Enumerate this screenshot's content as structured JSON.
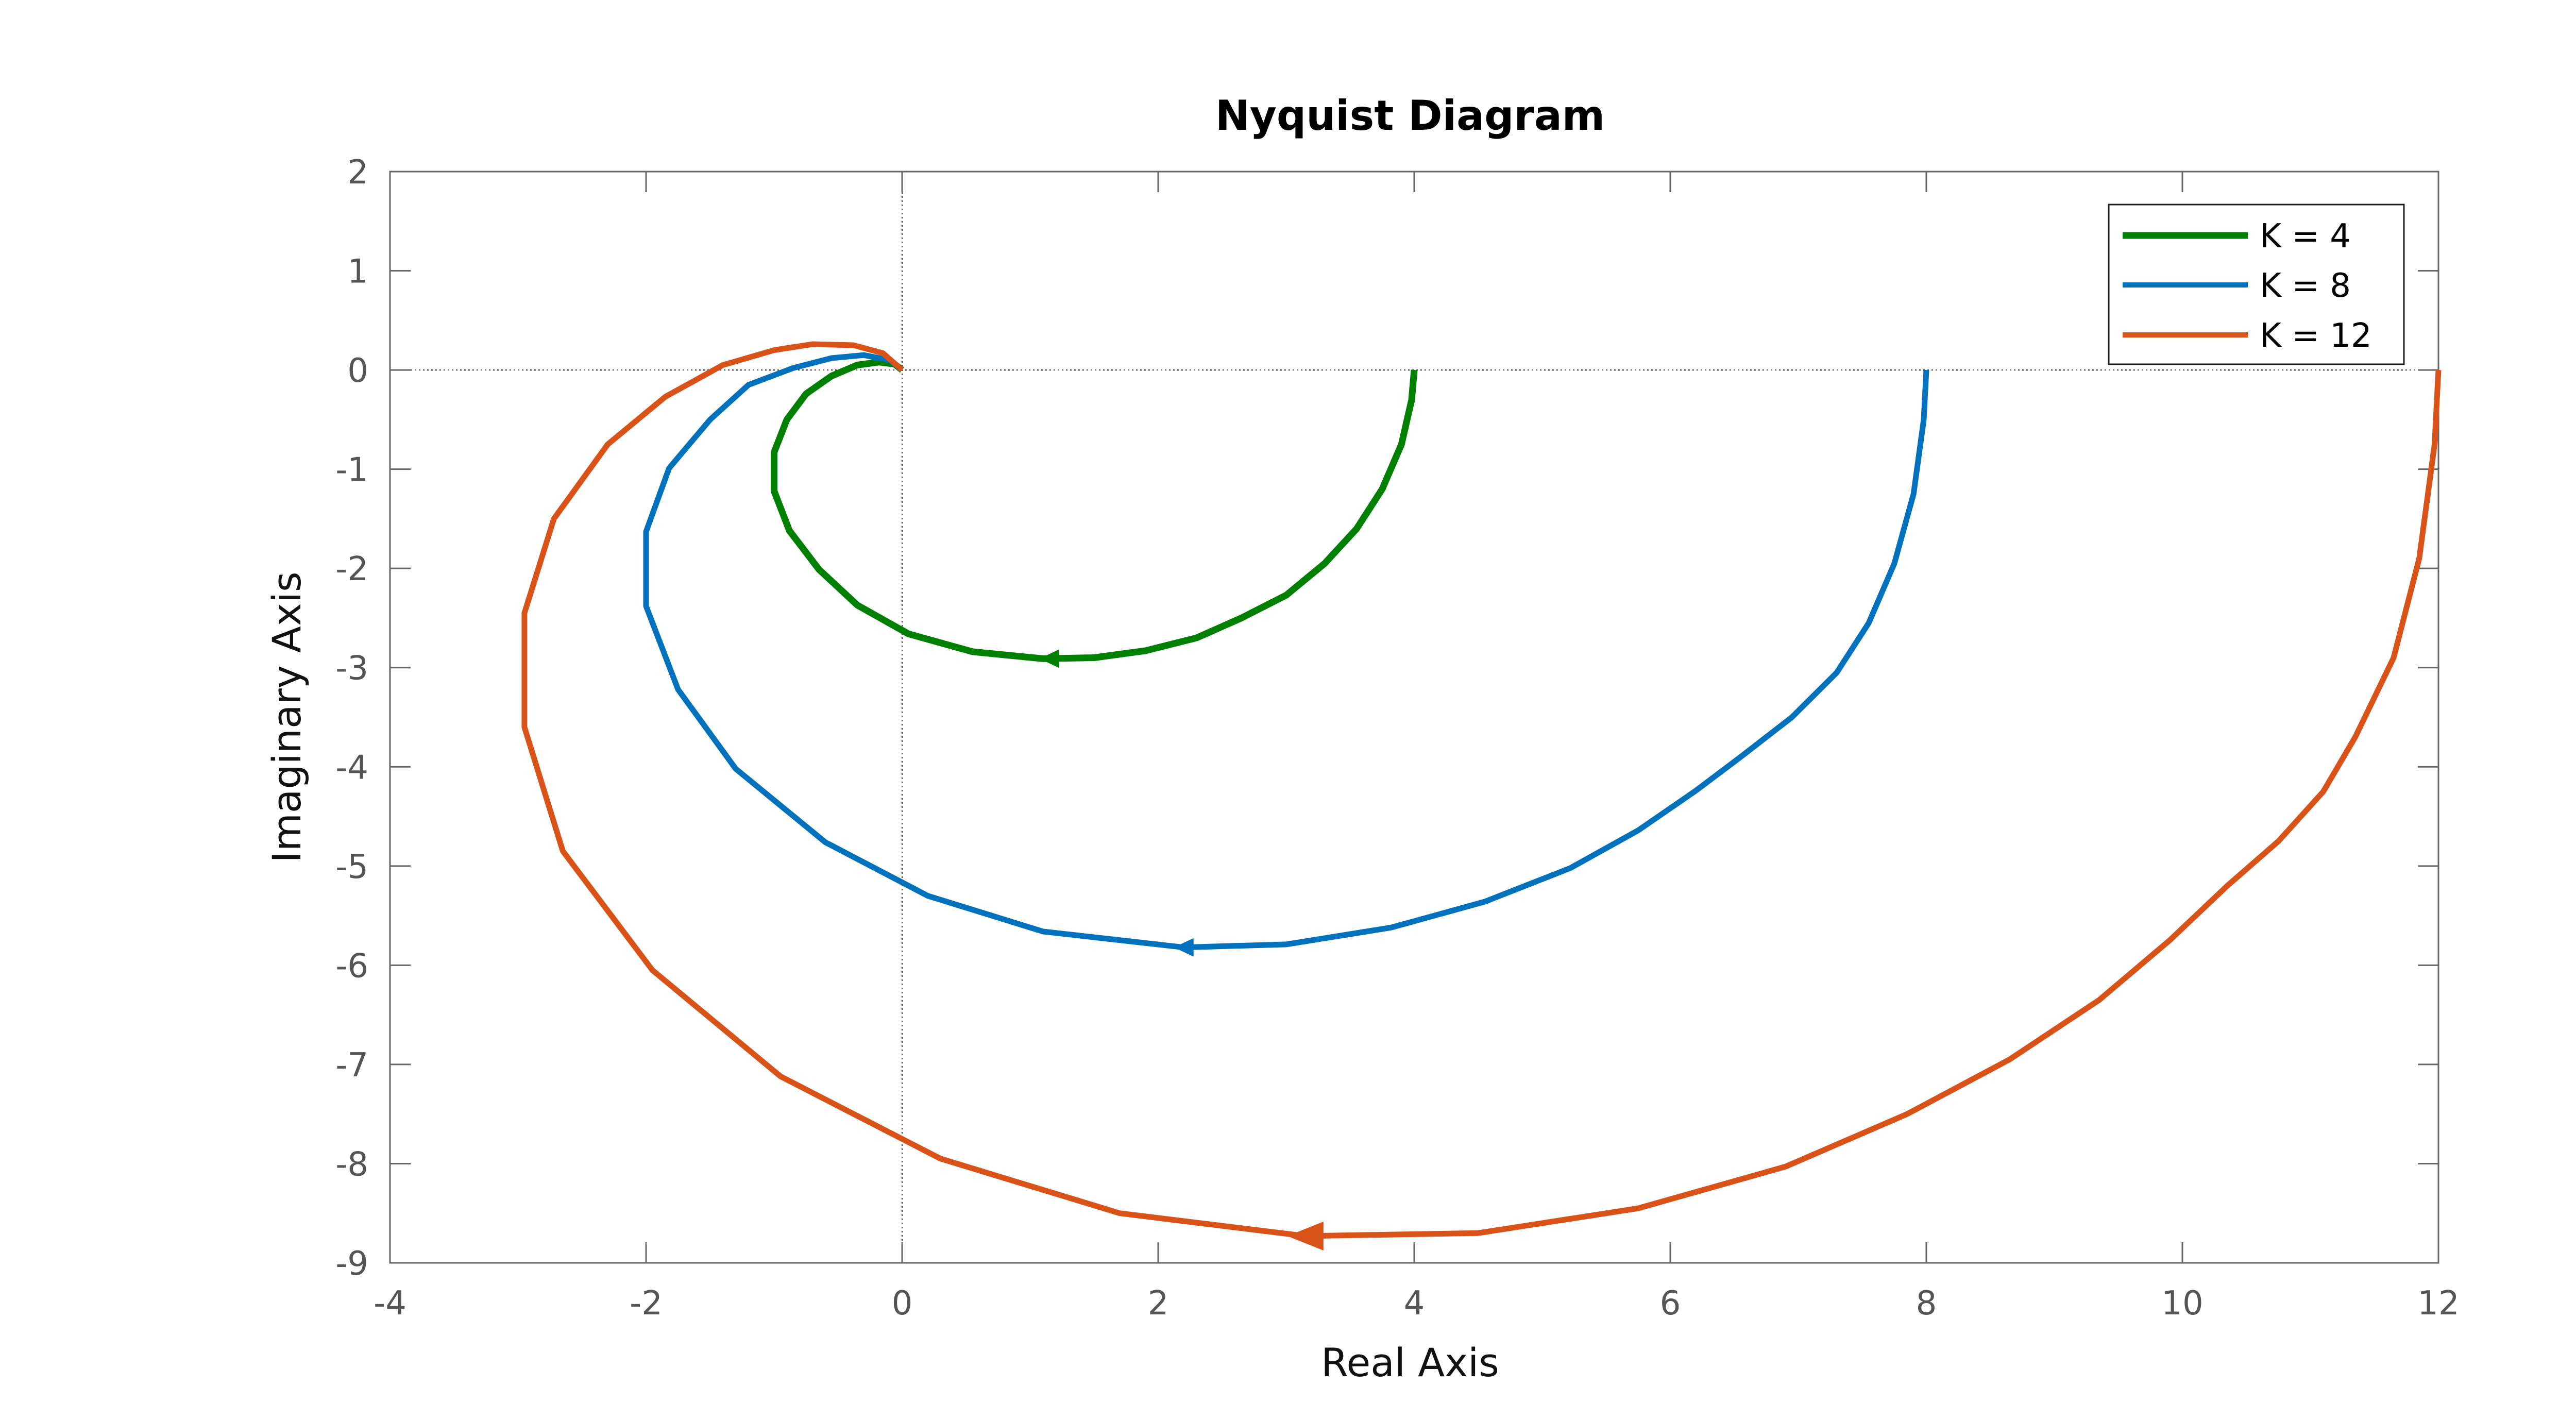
{
  "chart_data": {
    "type": "line",
    "title": "Nyquist Diagram",
    "xlabel": "Real Axis",
    "ylabel": "Imaginary Axis",
    "xlim": [
      -4,
      12
    ],
    "ylim": [
      -9,
      2
    ],
    "xticks": [
      "-4",
      "-2",
      "0",
      "2",
      "4",
      "6",
      "8",
      "10",
      "12"
    ],
    "yticks": [
      "2",
      "1",
      "0",
      "-1",
      "-2",
      "-3",
      "-4",
      "-5",
      "-6",
      "-7",
      "-8",
      "-9"
    ],
    "grid": false,
    "legend_position": "top-right",
    "series": [
      {
        "name": "K = 4",
        "color": "#008000",
        "x": [
          4.0,
          3.98,
          3.9,
          3.75,
          3.55,
          3.3,
          3.0,
          2.65,
          2.3,
          1.9,
          1.5,
          1.1,
          0.55,
          0.05,
          -0.35,
          -0.65,
          -0.88,
          -1.0,
          -1.0,
          -0.9,
          -0.75,
          -0.55,
          -0.35,
          -0.18,
          -0.06,
          0.0
        ],
        "y": [
          0.0,
          -0.3,
          -0.75,
          -1.2,
          -1.6,
          -1.95,
          -2.27,
          -2.5,
          -2.7,
          -2.83,
          -2.9,
          -2.91,
          -2.84,
          -2.66,
          -2.37,
          -2.01,
          -1.62,
          -1.22,
          -0.83,
          -0.5,
          -0.24,
          -0.06,
          0.05,
          0.08,
          0.06,
          0.0
        ],
        "arrow_at": [
          1.15,
          -2.91
        ]
      },
      {
        "name": "K = 8",
        "color": "#0072BD",
        "x": [
          8.0,
          7.98,
          7.9,
          7.75,
          7.55,
          7.3,
          6.95,
          6.55,
          6.2,
          5.75,
          5.22,
          4.55,
          3.82,
          3.0,
          2.2,
          1.1,
          0.2,
          -0.6,
          -1.3,
          -1.75,
          -2.0,
          -2.0,
          -1.82,
          -1.5,
          -1.2,
          -0.85,
          -0.55,
          -0.3,
          -0.1,
          0.0
        ],
        "y": [
          0.0,
          -0.5,
          -1.25,
          -1.95,
          -2.55,
          -3.05,
          -3.5,
          -3.9,
          -4.24,
          -4.64,
          -5.02,
          -5.36,
          -5.62,
          -5.79,
          -5.82,
          -5.66,
          -5.3,
          -4.76,
          -4.02,
          -3.22,
          -2.38,
          -1.63,
          -0.99,
          -0.5,
          -0.15,
          0.02,
          0.12,
          0.15,
          0.1,
          0.0
        ],
        "arrow_at": [
          2.2,
          -5.82
        ]
      },
      {
        "name": "K = 12",
        "color": "#D95319",
        "x": [
          12.0,
          11.97,
          11.85,
          11.65,
          11.35,
          11.1,
          10.75,
          10.35,
          9.9,
          9.35,
          8.65,
          7.85,
          6.9,
          5.75,
          4.5,
          3.15,
          1.7,
          0.3,
          -0.95,
          -1.95,
          -2.65,
          -2.95,
          -2.95,
          -2.72,
          -2.3,
          -1.85,
          -1.4,
          -1.0,
          -0.7,
          -0.38,
          -0.15,
          0.0
        ],
        "y": [
          0.0,
          -0.75,
          -1.9,
          -2.9,
          -3.7,
          -4.25,
          -4.75,
          -5.2,
          -5.75,
          -6.35,
          -6.95,
          -7.5,
          -8.03,
          -8.45,
          -8.7,
          -8.73,
          -8.5,
          -7.95,
          -7.12,
          -6.05,
          -4.85,
          -3.6,
          -2.45,
          -1.5,
          -0.75,
          -0.27,
          0.05,
          0.2,
          0.26,
          0.25,
          0.17,
          0.0
        ],
        "arrow_at": [
          3.15,
          -8.73
        ]
      }
    ]
  }
}
